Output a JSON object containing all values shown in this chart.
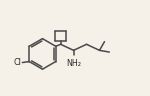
{
  "bg_color": "#f5f0e8",
  "line_color": "#4a4a4a",
  "line_width": 1.1,
  "text_color": "#2a2a2a",
  "cl_label": "Cl",
  "nh2_label": "NH₂",
  "cl_fontsize": 5.8,
  "nh2_fontsize": 5.8,
  "figsize": [
    1.5,
    0.96
  ],
  "dpi": 100
}
